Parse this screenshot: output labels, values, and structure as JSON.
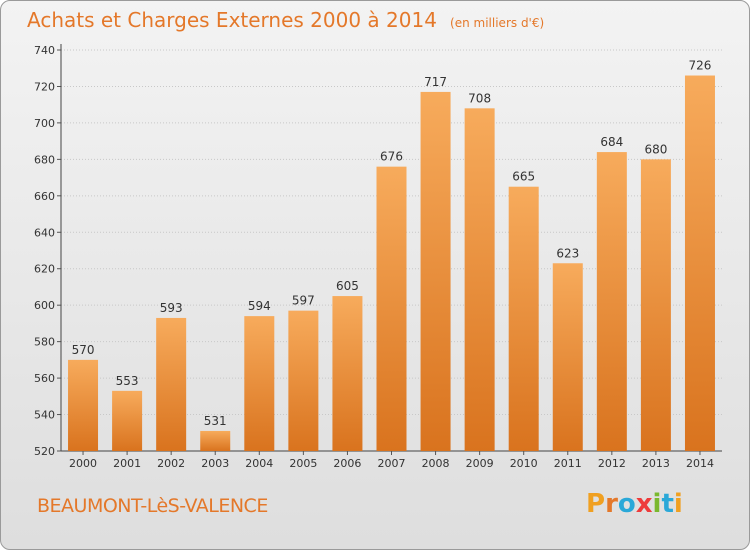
{
  "header": {
    "title": "Achats et Charges Externes 2000 à 2014",
    "unit": "(en milliers d'€)"
  },
  "footer": {
    "location": "BEAUMONT-LèS-VALENCE",
    "logo_text": "Proxiti",
    "logo_colors": [
      "#f0a021",
      "#e4782a",
      "#2aa8d8",
      "#ee3b3b",
      "#7ab82e",
      "#2aa8d8",
      "#f0a021"
    ]
  },
  "colors": {
    "bar_light": "#f7ab5c",
    "bar_dark": "#d9731e",
    "accent": "#e4782a"
  },
  "chart_data": {
    "type": "bar",
    "categories": [
      "2000",
      "2001",
      "2002",
      "2003",
      "2004",
      "2005",
      "2006",
      "2007",
      "2008",
      "2009",
      "2010",
      "2011",
      "2012",
      "2013",
      "2014"
    ],
    "values": [
      570,
      553,
      593,
      531,
      594,
      597,
      605,
      676,
      717,
      708,
      665,
      623,
      684,
      680,
      726
    ],
    "ylim": [
      520,
      740
    ],
    "yticks": [
      520,
      540,
      560,
      580,
      600,
      620,
      640,
      660,
      680,
      700,
      720,
      740
    ],
    "grid": true
  }
}
